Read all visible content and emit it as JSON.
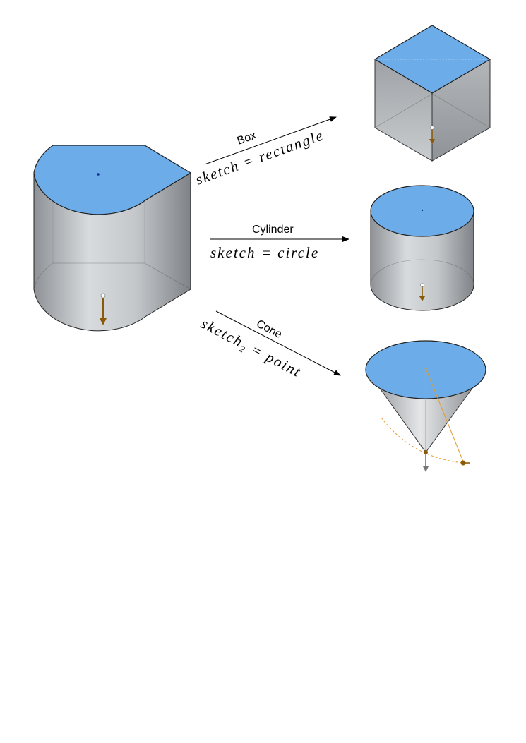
{
  "colors": {
    "face_top": "#6cace9",
    "face_side": "#bfc3c6",
    "edge": "#222222",
    "handle": "#9a6a10",
    "guide": "#e39a2a"
  },
  "transitions": [
    {
      "label": "Box",
      "formula_main": "sketch = rectangle",
      "formula_sub": ""
    },
    {
      "label": "Cylinder",
      "formula_main": "sketch = circle",
      "formula_sub": ""
    },
    {
      "label": "Cone",
      "formula_main_a": "sketch",
      "formula_sub": "2",
      "formula_main_b": " = point"
    }
  ],
  "shapes": [
    {
      "name": "source-extrusion",
      "icon": "rounded-prism"
    },
    {
      "name": "box",
      "icon": "cube"
    },
    {
      "name": "cylinder",
      "icon": "cylinder"
    },
    {
      "name": "cone",
      "icon": "cone"
    }
  ]
}
